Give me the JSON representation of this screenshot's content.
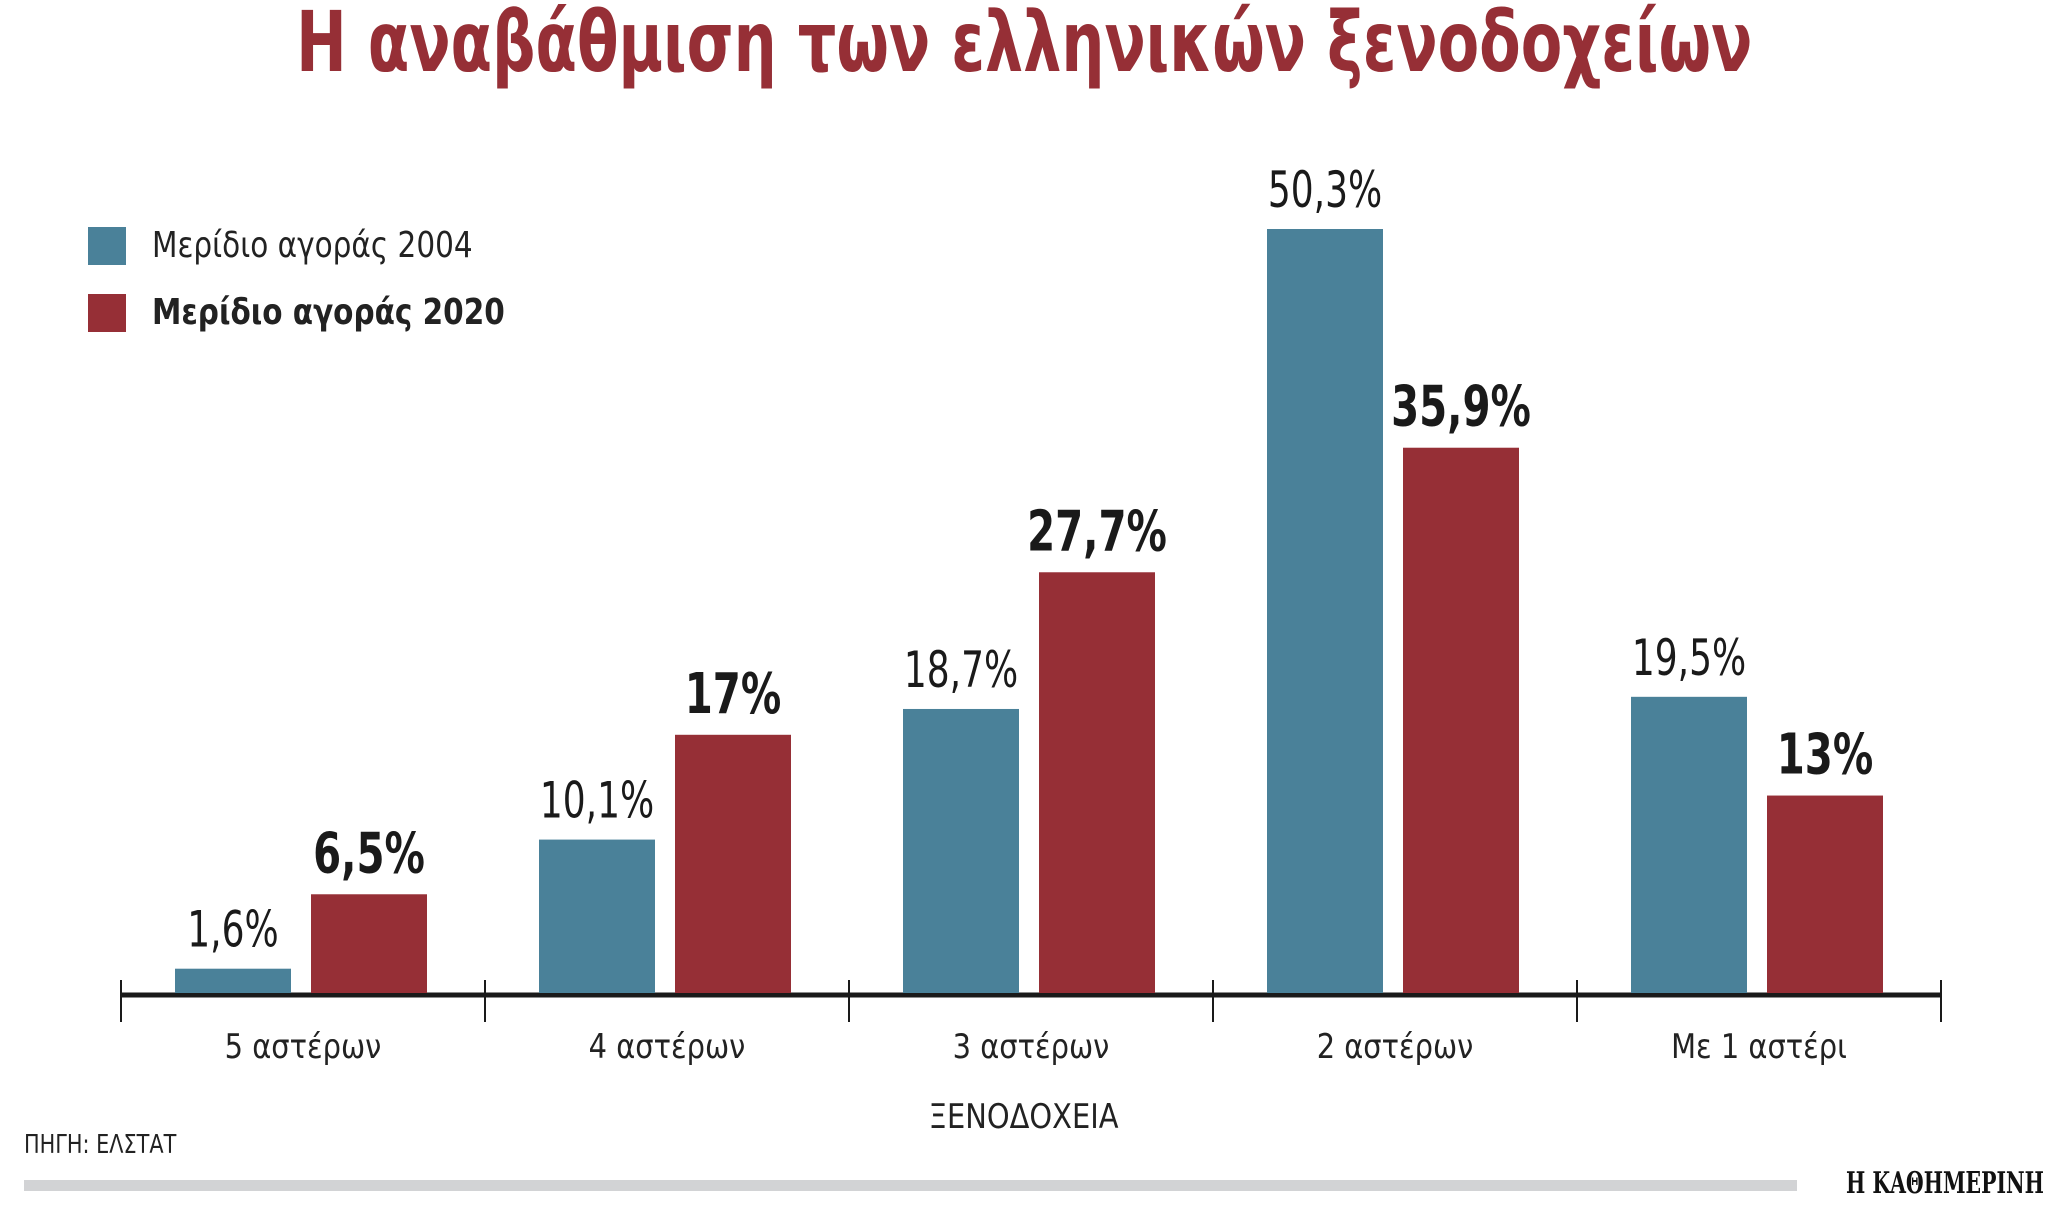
{
  "chart_data": {
    "type": "bar",
    "title": "Η αναβάθμιση των ελληνικών ξενοδοχείων",
    "xlabel": "ΞΕΝΟΔΟΧΕΙΑ",
    "ylabel": "",
    "categories": [
      "5 αστέρων",
      "4 αστέρων",
      "3 αστέρων",
      "2 αστέρων",
      "Με 1 αστέρι"
    ],
    "series": [
      {
        "name": "Μερίδιο αγοράς 2004",
        "color": "#4a8199",
        "values": [
          1.6,
          10.1,
          18.7,
          50.3,
          19.5
        ],
        "labels": [
          "1,6%",
          "10,1%",
          "18,7%",
          "50,3%",
          "19,5%"
        ]
      },
      {
        "name": "Μερίδιο αγοράς 2020",
        "color": "#962f36",
        "values": [
          6.5,
          17,
          27.7,
          35.9,
          13
        ],
        "labels": [
          "6,5%",
          "17%",
          "27,7%",
          "35,9%",
          "13%"
        ]
      }
    ],
    "ylim": [
      0,
      50.3
    ],
    "grid": false,
    "legend": "top-left"
  },
  "source": "ΠΗΓΗ: ΕΛΣΤΑΤ",
  "logo": "Η ΚΑΘΗΜΕΡΙΝΗ"
}
